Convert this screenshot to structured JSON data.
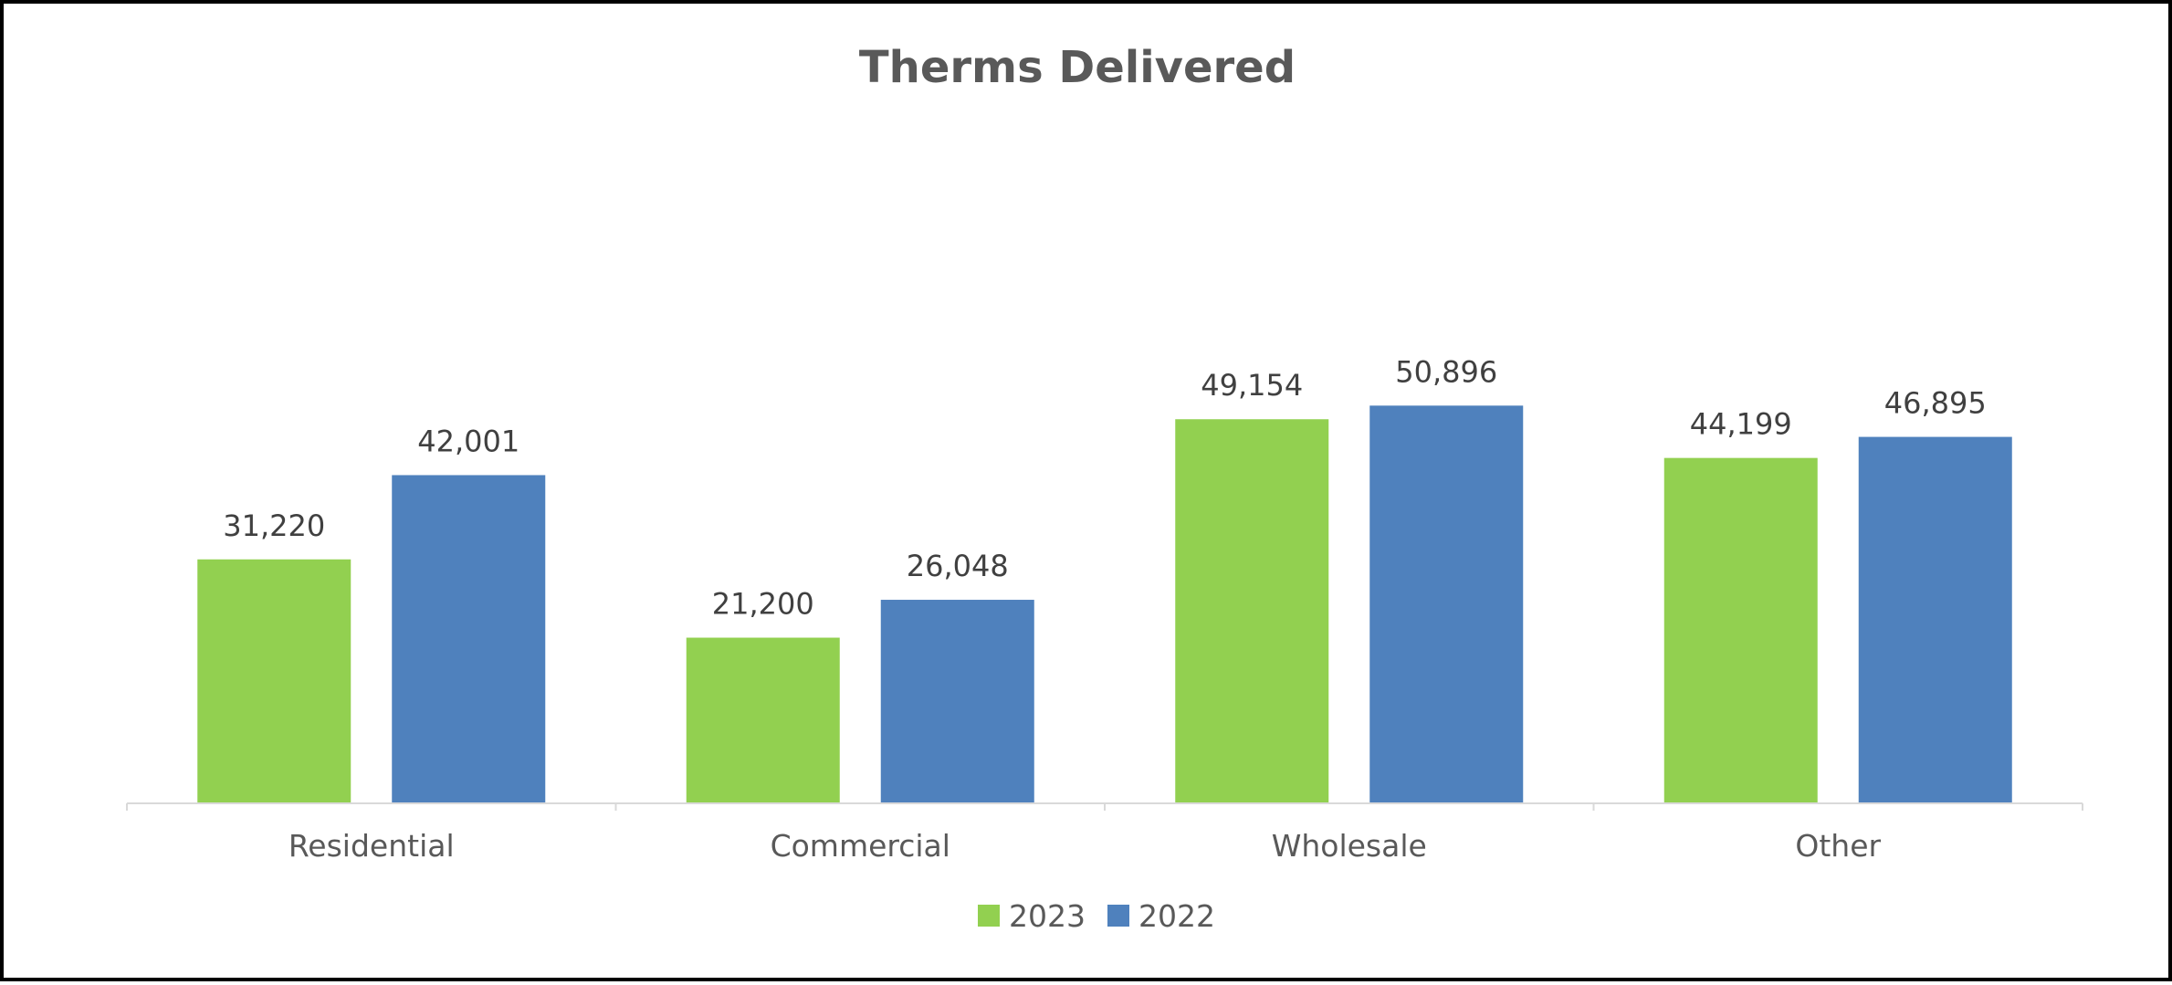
{
  "chart_data": {
    "type": "bar",
    "title": "Therms Delivered",
    "categories": [
      "Residential",
      "Commercial",
      "Wholesale",
      "Other"
    ],
    "series": [
      {
        "name": "2023",
        "color": "#92d050",
        "values": [
          31220,
          21200,
          49154,
          44199
        ]
      },
      {
        "name": "2022",
        "color": "#4f81bd",
        "values": [
          42001,
          26048,
          50896,
          46895
        ]
      }
    ],
    "data_labels": [
      [
        "31,220",
        "21,200",
        "49,154",
        "44,199"
      ],
      [
        "42,001",
        "26,048",
        "50,896",
        "46,895"
      ]
    ],
    "ylim": [
      0,
      52000
    ],
    "grid": false,
    "legend": "bottom"
  }
}
